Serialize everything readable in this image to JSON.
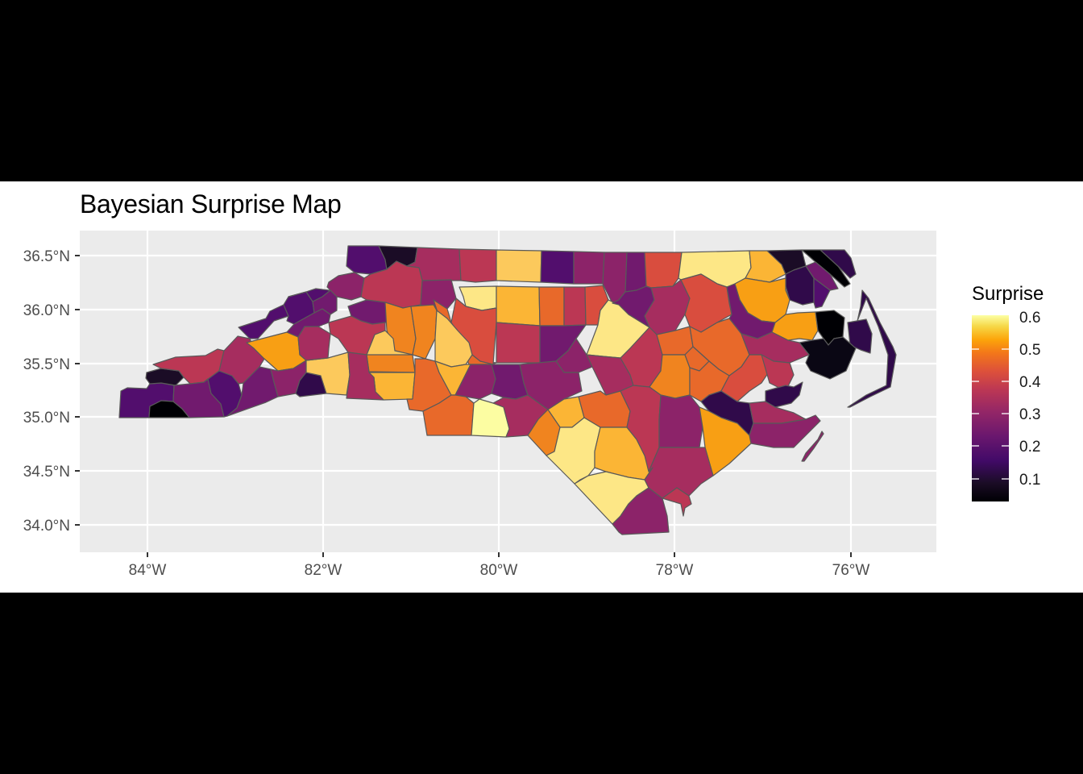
{
  "title": "Bayesian Surprise Map",
  "chart_data": {
    "type": "map",
    "title": "Bayesian Surprise Map",
    "xlabel": "",
    "ylabel": "",
    "x_ticks": [
      "84°W",
      "82°W",
      "80°W",
      "78°W",
      "76°W"
    ],
    "y_ticks": [
      "36.5°N",
      "36.0°N",
      "35.5°N",
      "35.0°N",
      "34.5°N",
      "34.0°N"
    ],
    "xlim": [
      -84.75,
      -75.0
    ],
    "ylim": [
      33.75,
      36.75
    ],
    "grid": true,
    "region": "North Carolina counties",
    "legend": {
      "title": "Surprise",
      "position": "right",
      "colormap": "inferno",
      "ticks": [
        "0.6",
        "0.5",
        "0.4",
        "0.3",
        "0.2",
        "0.1"
      ],
      "range": [
        0.03,
        0.62
      ]
    }
  },
  "colors": {
    "panel_bg": "#ebebeb",
    "grid": "#ffffff",
    "border": "#595959",
    "c05": "#0a0714",
    "c08": "#1b0c26",
    "c12": "#300a4a",
    "c17": "#520e6d",
    "c22": "#711a6e",
    "c27": "#8c2369",
    "c31": "#a62d5f",
    "c34": "#bb3754",
    "c39": "#d94d3e",
    "c43": "#e8692a",
    "c46": "#f0841f",
    "c49": "#f89f14",
    "c52": "#fbb535",
    "c56": "#fcc95c",
    "c59": "#fde786",
    "c62": "#fcfda2",
    "c00": "#000004"
  },
  "counties": [
    {
      "c": "c17",
      "p": "150,485 158,481 182,482 186,476 200,475 216,478 215,498 200,497 186,504 185,518 148,518"
    },
    {
      "c": "c08",
      "p": "182,462 200,457 222,460 228,468 218,478 200,475 186,476 181,469"
    },
    {
      "c": "c00",
      "p": "186,504 200,497 215,498 226,507 235,518 185,518"
    },
    {
      "c": "c34",
      "p": "190,452 218,443 255,441 270,433 278,435 272,460 253,474 236,476 228,468 222,460 200,457"
    },
    {
      "c": "c22",
      "p": "216,478 236,476 253,474 258,470 262,488 274,501 278,517 235,518 226,507 215,498"
    },
    {
      "c": "c17",
      "p": "253,474 272,460 288,466 296,476 300,490 294,506 282,516 278,517 274,501 262,488 258,470"
    },
    {
      "c": "c31",
      "p": "272,460 278,435 295,417 310,420 315,432 328,445 322,455 302,475 296,476 288,466"
    },
    {
      "c": "c22",
      "p": "294,506 300,490 302,475 322,455 336,458 340,474 345,492 330,499 282,516"
    },
    {
      "c": "c17",
      "p": "296,406 330,395 335,386 352,378 358,392 340,398 320,420 310,420"
    },
    {
      "c": "c17",
      "p": "352,378 358,368 380,362 388,374 390,388 365,402 356,398 358,392"
    },
    {
      "c": "c49",
      "p": "306,425 356,412 370,418 372,440 380,447 364,457 345,460 328,445 315,432"
    },
    {
      "c": "c27",
      "p": "340,474 336,458 345,460 364,457 380,447 380,462 372,472 367,488 345,492"
    },
    {
      "c": "c12",
      "p": "367,488 372,472 380,462 398,466 405,488 372,492"
    },
    {
      "c": "c56",
      "p": "380,447 407,444 432,437 434,465 430,490 405,488 398,466 380,462"
    },
    {
      "c": "c31",
      "p": "370,418 378,405 395,405 410,414 408,432 407,444 380,447 372,440"
    },
    {
      "c": "c22",
      "p": "365,402 390,388 400,383 410,390 408,400 395,405 378,405 370,418 356,412"
    },
    {
      "c": "c22",
      "p": "390,388 388,374 400,368 410,360 418,368 418,385 410,390 400,383"
    },
    {
      "c": "c17",
      "p": "358,368 380,362 392,358 408,360 410,360 400,368 388,374 380,362"
    },
    {
      "c": "c27",
      "p": "408,350 420,342 440,338 452,345 448,368 436,372 418,368 410,360 406,356"
    },
    {
      "c": "c17",
      "p": "432,305 470,305 478,322 480,334 460,340 440,338 430,330"
    },
    {
      "c": "c08",
      "p": "470,305 518,307 515,325 505,330 492,324 480,334 478,322"
    },
    {
      "c": "c31",
      "p": "518,307 570,309 572,348 524,348 520,332 505,330 515,325"
    },
    {
      "c": "c34",
      "p": "480,334 492,324 505,330 520,332 524,348 522,378 500,382 478,375 455,372 448,368 452,345 460,340"
    },
    {
      "c": "c27",
      "p": "524,348 560,347 566,370 555,383 540,385 522,378"
    },
    {
      "c": "c34",
      "p": "570,309 616,310 616,348 590,350 572,348"
    },
    {
      "c": "c56",
      "p": "616,310 672,311 671,350 616,348"
    },
    {
      "c": "c17",
      "p": "672,311 712,312 712,352 671,350"
    },
    {
      "c": "c27",
      "p": "712,312 750,313 748,352 712,352"
    },
    {
      "c": "c27",
      "p": "750,313 778,313 776,362 768,372 760,376 748,352"
    },
    {
      "c": "c22",
      "p": "778,313 800,313 802,355 790,360 776,362"
    },
    {
      "c": "c39",
      "p": "800,313 846,313 842,345 835,355 808,357 802,355"
    },
    {
      "c": "c59",
      "p": "846,313 930,311 932,332 925,345 912,352 902,356 890,352 870,340 845,347 842,345"
    },
    {
      "c": "c52",
      "p": "930,311 952,311 970,328 975,340 955,350 925,345 932,332"
    },
    {
      "c": "c08",
      "p": "952,311 995,310 1000,330 985,335 975,340 970,328"
    },
    {
      "c": "c00",
      "p": "995,310 1018,310 1040,330 1055,352 1048,356 1030,340 1012,325"
    },
    {
      "c": "c12",
      "p": "1018,310 1048,310 1056,320 1062,340 1055,345 1042,332"
    },
    {
      "c": "c22",
      "p": "1000,330 1012,325 1030,340 1040,358 1030,360 1010,345"
    },
    {
      "c": "c12",
      "p": "975,340 985,335 1000,330 1010,345 1010,375 996,378 980,372 975,355"
    },
    {
      "c": "c17",
      "p": "1030,360 1010,345 1010,375 1012,382 1020,380"
    },
    {
      "c": "c49",
      "p": "925,345 955,350 975,345 975,360 980,372 975,390 962,400 945,398 928,388 918,372 912,352"
    },
    {
      "c": "c59",
      "p": "570,356 616,355 616,382 598,385 578,380 575,368"
    },
    {
      "c": "c52",
      "p": "616,355 669,356 670,404 616,400"
    },
    {
      "c": "c43",
      "p": "669,356 700,356 700,404 670,404"
    },
    {
      "c": "c34",
      "p": "700,356 726,356 727,403 700,404"
    },
    {
      "c": "c39",
      "p": "726,356 748,354 755,372 745,385 742,403 727,403"
    },
    {
      "c": "c59",
      "p": "742,403 745,385 755,372 768,378 780,390 806,406 782,432 770,444 748,442 728,440"
    },
    {
      "c": "c22",
      "p": "760,376 768,372 776,362 790,360 802,355 808,357 812,372 800,392 806,406 780,390 768,378"
    },
    {
      "c": "c31",
      "p": "808,357 835,355 845,347 856,370 850,390 838,410 815,415 806,406 800,392 812,372"
    },
    {
      "c": "c39",
      "p": "845,347 870,340 890,352 902,356 905,376 908,390 890,400 870,412 856,405 850,390 856,370"
    },
    {
      "c": "c22",
      "p": "902,356 912,352 918,372 928,388 945,398 962,400 958,412 940,420 920,414 905,395 908,390"
    },
    {
      "c": "c49",
      "p": "962,400 975,390 990,388 1012,387 1015,410 1008,422 992,420 978,422 958,412"
    },
    {
      "c": "c00",
      "p": "1012,387 1035,385 1048,394 1046,418 1035,420 1028,428 1022,420 1015,410"
    },
    {
      "c": "c12",
      "p": "1052,400 1075,396 1082,414 1080,438 1068,434 1055,428"
    },
    {
      "c": "c05",
      "p": "992,425 1008,422 1022,420 1028,428 1035,420 1046,418 1062,432 1050,460 1030,470 1006,460 1000,450 1004,440"
    },
    {
      "c": "c43",
      "p": "538,372 555,383 560,400 570,415 586,440 596,448 616,450 610,452 582,452 578,442 565,430 548,402"
    },
    {
      "c": "c39",
      "p": "560,400 566,370 578,380 598,385 616,382 616,400 612,452 596,448 586,440 570,415"
    },
    {
      "c": "c34",
      "p": "616,400 670,404 670,450 616,450"
    },
    {
      "c": "c22",
      "p": "670,404 700,404 727,403 715,420 705,435 690,448 670,450"
    },
    {
      "c": "c27",
      "p": "690,448 705,435 715,420 728,440 735,455 718,462 700,462"
    },
    {
      "c": "c31",
      "p": "728,440 748,442 770,444 782,465 786,478 770,485 752,490 735,455"
    },
    {
      "c": "c34",
      "p": "770,444 782,432 806,406 815,415 822,440 820,460 806,480 786,478 782,465"
    },
    {
      "c": "c43",
      "p": "815,415 838,410 856,405 860,430 850,440 842,440 822,440"
    },
    {
      "c": "c43",
      "p": "856,405 870,412 890,400 905,395 920,414 930,440 920,455 905,466 892,458 880,448 860,430"
    },
    {
      "c": "c31",
      "p": "920,414 940,420 958,412 978,422 992,425 1004,440 980,450 960,448 945,440 930,440"
    },
    {
      "c": "c46",
      "p": "822,440 842,440 850,440 856,456 856,490 838,494 820,490 806,480 820,460"
    },
    {
      "c": "c43",
      "p": "850,440 860,430 880,448 868,460 858,470 856,456"
    },
    {
      "c": "c43",
      "p": "856,456 868,460 880,448 892,458 905,466 895,485 880,490 870,498 856,490"
    },
    {
      "c": "c39",
      "p": "905,466 920,455 930,440 945,440 955,460 945,475 930,485 915,498 895,485"
    },
    {
      "c": "c34",
      "p": "945,440 960,448 980,450 985,465 975,485 955,475"
    },
    {
      "c": "c12",
      "p": "950,485 975,478 985,480 996,474 992,490 982,500 962,505 950,498"
    },
    {
      "c": "c12",
      "p": "870,498 880,490 895,485 915,498 930,500 935,525 930,540 915,525 895,518 880,510"
    },
    {
      "c": "c31",
      "p": "930,500 950,498 962,505 985,512 1000,520 970,525 950,525 935,525"
    },
    {
      "c": "c27",
      "p": "935,525 950,525 970,525 1000,520 1012,515 1018,522 1000,540 985,555 960,555 932,550 930,540"
    },
    {
      "c": "c27",
      "p": "1020,535 1015,545 1000,562 995,572 998,572 1010,556 1022,538"
    },
    {
      "c": "c12",
      "p": "1064,398 1068,380 1070,360 1078,370 1092,400 1108,430 1112,440 1105,480 1080,492 1055,505 1052,505 1075,490 1100,478 1102,440 1090,405 1075,370"
    },
    {
      "c": "c22",
      "p": "432,380 455,372 478,375 500,382 498,398 478,400 462,402 448,398 436,392"
    },
    {
      "c": "c46",
      "p": "478,375 500,382 510,380 516,420 512,440 490,435 480,410"
    },
    {
      "c": "c46",
      "p": "510,380 538,378 542,385 540,420 528,445 512,440 516,420"
    },
    {
      "c": "c56",
      "p": "455,440 465,415 478,410 488,420 490,435 512,440 480,442"
    },
    {
      "c": "c34",
      "p": "436,392 448,398 462,402 478,400 478,410 465,415 455,440 432,437 420,420 410,414 408,400"
    },
    {
      "c": "c56",
      "p": "540,420 542,385 555,395 568,410 582,425 586,440 578,452 560,455 540,448"
    },
    {
      "c": "c46",
      "p": "455,440 512,440 515,462 458,461"
    },
    {
      "c": "c52",
      "p": "458,462 515,462 512,495 476,496 466,486 464,468"
    },
    {
      "c": "c31",
      "p": "432,437 455,440 458,462 464,468 466,486 476,496 430,494 434,465"
    },
    {
      "c": "c43",
      "p": "515,445 528,445 540,448 545,462 560,490 545,500 525,510 508,508 505,495 512,495 515,462"
    },
    {
      "c": "c52",
      "p": "540,448 560,455 578,452 584,452 565,490 560,490 545,462"
    },
    {
      "c": "c27",
      "p": "584,452 610,452 615,470 610,488 595,495 578,492 565,490"
    },
    {
      "c": "c22",
      "p": "610,452 645,452 650,475 655,490 640,495 625,493 610,488 615,470"
    },
    {
      "c": "c27",
      "p": "645,452 690,448 700,462 718,462 722,485 700,495 680,508 655,490 650,475"
    },
    {
      "c": "c43",
      "p": "525,510 545,500 560,490 565,490 578,492 588,500 585,540 530,540"
    },
    {
      "c": "c62",
      "p": "588,500 595,495 612,500 625,505 632,532 628,542 585,540"
    },
    {
      "c": "c31",
      "p": "612,500 625,493 640,495 655,490 680,508 668,520 655,540 628,542 632,532 625,505"
    },
    {
      "c": "c52",
      "p": "680,508 700,495 718,492 725,518 710,530 695,530"
    },
    {
      "c": "c46",
      "p": "668,520 680,508 695,530 688,560 678,565 655,540"
    },
    {
      "c": "c43",
      "p": "718,492 745,485 752,490 770,485 782,510 778,530 745,530 725,518"
    },
    {
      "c": "c59",
      "p": "678,565 688,560 695,530 710,530 725,518 745,530 738,560 738,580 730,590 720,595 713,600"
    },
    {
      "c": "c52",
      "p": "738,560 745,530 778,530 790,545 800,565 810,580 800,595 780,592 752,585 738,580"
    },
    {
      "c": "c59",
      "p": "713,600 730,590 752,585 780,592 800,595 805,605 790,615 780,625 770,640 760,650"
    },
    {
      "c": "c27",
      "p": "760,650 770,640 780,625 790,615 805,605 822,618 828,640 830,660 772,663 768,660"
    },
    {
      "c": "c34",
      "p": "770,485 786,478 806,480 820,490 818,520 818,555 805,585 800,565 790,545 778,530 782,510"
    },
    {
      "c": "c27",
      "p": "818,520 820,490 838,494 856,490 868,505 872,530 868,555 840,555 818,555"
    },
    {
      "c": "c49",
      "p": "868,505 880,510 895,518 915,525 930,540 932,550 905,575 885,590 875,555 872,530"
    },
    {
      "c": "c31",
      "p": "818,555 840,555 868,555 875,555 885,590 870,600 855,615 840,605 822,618 805,605 800,595 810,580 805,585"
    },
    {
      "c": "c34",
      "p": "822,618 840,605 855,615 858,625 850,630 848,640 845,625"
    }
  ],
  "border_path": "148,518 150,485 182,462 190,452 218,443 255,441 296,406 330,395 352,378 380,362 408,350 432,305 1056,310 1068,315"
}
